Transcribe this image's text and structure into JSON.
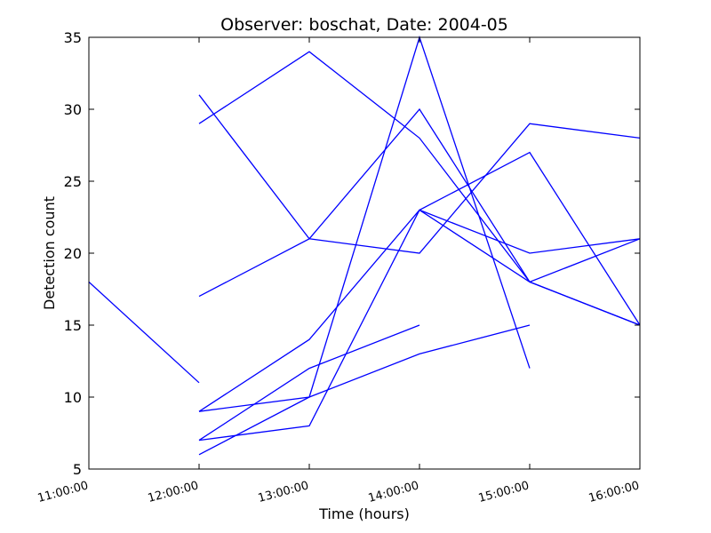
{
  "chart_data": {
    "type": "line",
    "title": "Observer: boschat, Date: 2004-05",
    "xlabel": "Time (hours)",
    "ylabel": "Detection count",
    "x_categories": [
      "11:00:00",
      "12:00:00",
      "13:00:00",
      "14:00:00",
      "15:00:00",
      "16:00:00"
    ],
    "xlim": [
      0,
      5
    ],
    "ylim": [
      5,
      35
    ],
    "yticks": [
      5,
      10,
      15,
      20,
      25,
      30,
      35
    ],
    "grid": false,
    "line_color": "#0000ff",
    "series": [
      {
        "points": [
          [
            0,
            18
          ],
          [
            1,
            11
          ]
        ]
      },
      {
        "points": [
          [
            1,
            29
          ],
          [
            2,
            34
          ],
          [
            3,
            28
          ],
          [
            4,
            18
          ],
          [
            5,
            21
          ]
        ]
      },
      {
        "points": [
          [
            1,
            31
          ],
          [
            2,
            21
          ],
          [
            3,
            20
          ],
          [
            4,
            29
          ],
          [
            5,
            28
          ]
        ]
      },
      {
        "points": [
          [
            1,
            17
          ],
          [
            2,
            21
          ],
          [
            3,
            30
          ],
          [
            4,
            18
          ],
          [
            5,
            15
          ]
        ]
      },
      {
        "points": [
          [
            1,
            9
          ],
          [
            2,
            14
          ],
          [
            3,
            23
          ],
          [
            4,
            27
          ],
          [
            5,
            15
          ]
        ]
      },
      {
        "points": [
          [
            1,
            7
          ],
          [
            2,
            12
          ],
          [
            3,
            15
          ]
        ]
      },
      {
        "points": [
          [
            1,
            9
          ],
          [
            2,
            10
          ],
          [
            3,
            35
          ],
          [
            4,
            12
          ]
        ]
      },
      {
        "points": [
          [
            1,
            6
          ],
          [
            2,
            10
          ],
          [
            3,
            13
          ],
          [
            4,
            15
          ]
        ]
      },
      {
        "points": [
          [
            1,
            7
          ],
          [
            2,
            8
          ],
          [
            3,
            23
          ],
          [
            4,
            18
          ],
          [
            5,
            15
          ]
        ]
      },
      {
        "points": [
          [
            3,
            23
          ],
          [
            4,
            20
          ],
          [
            5,
            21
          ]
        ]
      }
    ]
  }
}
